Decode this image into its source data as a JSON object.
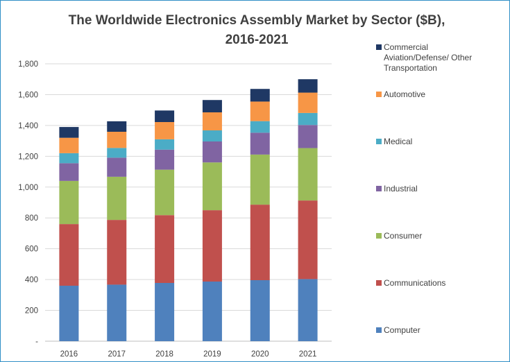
{
  "chart_data": {
    "type": "bar",
    "stacked": true,
    "title": "The Worldwide Electronics Assembly Market by Sector ($B), 2016-2021",
    "title_lines": [
      "The Worldwide Electronics Assembly Market by Sector ($B),",
      "2016-2021"
    ],
    "xlabel": "",
    "ylabel": "",
    "categories": [
      "2016",
      "2017",
      "2018",
      "2019",
      "2020",
      "2021"
    ],
    "ylim": [
      0,
      1800
    ],
    "yticks": [
      0,
      200,
      400,
      600,
      800,
      1000,
      1200,
      1400,
      1600,
      1800
    ],
    "ytick_labels": [
      "-",
      "200",
      "400",
      "600",
      "800",
      "1,000",
      "1,200",
      "1,400",
      "1,600",
      "1,800"
    ],
    "grid": true,
    "legend_position": "right",
    "series": [
      {
        "name": "Computer",
        "color": "#4f81bd",
        "values": [
          360,
          367,
          378,
          387,
          396,
          403
        ]
      },
      {
        "name": "Communications",
        "color": "#c0504d",
        "values": [
          400,
          420,
          440,
          463,
          490,
          510
        ]
      },
      {
        "name": "Consumer",
        "color": "#9bbb59",
        "values": [
          280,
          280,
          295,
          310,
          325,
          340
        ]
      },
      {
        "name": "Industrial",
        "color": "#8064a2",
        "values": [
          115,
          124,
          130,
          136,
          142,
          150
        ]
      },
      {
        "name": "Medical",
        "color": "#4bacc6",
        "values": [
          65,
          63,
          67,
          72,
          75,
          78
        ]
      },
      {
        "name": "Automotive",
        "color": "#f79646",
        "values": [
          100,
          105,
          112,
          117,
          127,
          132
        ]
      },
      {
        "name": "Commercial Aviation/Defense/ Other Transportation",
        "color": "#1f3864",
        "values": [
          70,
          68,
          75,
          80,
          82,
          87
        ]
      }
    ],
    "legend_lines": {
      "Commercial Aviation/Defense/ Other Transportation": [
        "Commercial",
        "Aviation/Defense/ Other",
        "Transportation"
      ]
    }
  }
}
